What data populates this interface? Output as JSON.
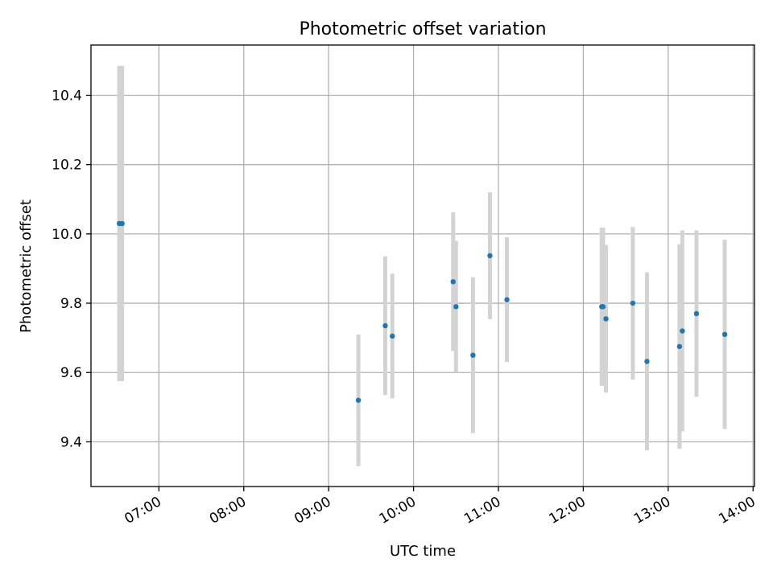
{
  "chart_data": {
    "type": "scatter",
    "title": "Photometric offset variation",
    "xlabel": "UTC time",
    "ylabel": "Photometric offset",
    "x_tick_labels": [
      "07:00",
      "08:00",
      "09:00",
      "10:00",
      "11:00",
      "12:00",
      "13:00",
      "14:00"
    ],
    "y_tick_labels": [
      "9.4",
      "9.6",
      "9.8",
      "10.0",
      "10.2",
      "10.4"
    ],
    "y_ticks": [
      9.4,
      9.6,
      9.8,
      10.0,
      10.2,
      10.4
    ],
    "xlim": [
      "06:12",
      "14:01"
    ],
    "ylim": [
      9.271,
      10.545
    ],
    "grid": true,
    "colors": {
      "point": "#1f77b4",
      "errorbar": "#d3d3d3",
      "grid": "#b0b0b0"
    },
    "points": [
      {
        "x": "06:32",
        "y": 10.03,
        "err": 0.455
      },
      {
        "x": "06:34",
        "y": 10.03,
        "err": 0.455
      },
      {
        "x": "09:21",
        "y": 9.52,
        "err": 0.19
      },
      {
        "x": "09:40",
        "y": 9.735,
        "err": 0.2
      },
      {
        "x": "09:45",
        "y": 9.705,
        "err": 0.18
      },
      {
        "x": "10:28",
        "y": 9.862,
        "err": 0.2
      },
      {
        "x": "10:30",
        "y": 9.79,
        "err": 0.19
      },
      {
        "x": "10:42",
        "y": 9.65,
        "err": 0.225
      },
      {
        "x": "10:54",
        "y": 9.937,
        "err": 0.183
      },
      {
        "x": "11:06",
        "y": 9.81,
        "err": 0.18
      },
      {
        "x": "12:13",
        "y": 9.79,
        "err": 0.228
      },
      {
        "x": "12:14",
        "y": 9.79,
        "err": 0.228
      },
      {
        "x": "12:16",
        "y": 9.755,
        "err": 0.213
      },
      {
        "x": "12:35",
        "y": 9.8,
        "err": 0.22
      },
      {
        "x": "12:45",
        "y": 9.632,
        "err": 0.257
      },
      {
        "x": "13:08",
        "y": 9.675,
        "err": 0.295
      },
      {
        "x": "13:10",
        "y": 9.72,
        "err": 0.29
      },
      {
        "x": "13:20",
        "y": 9.77,
        "err": 0.24
      },
      {
        "x": "13:40",
        "y": 9.71,
        "err": 0.273
      }
    ]
  }
}
